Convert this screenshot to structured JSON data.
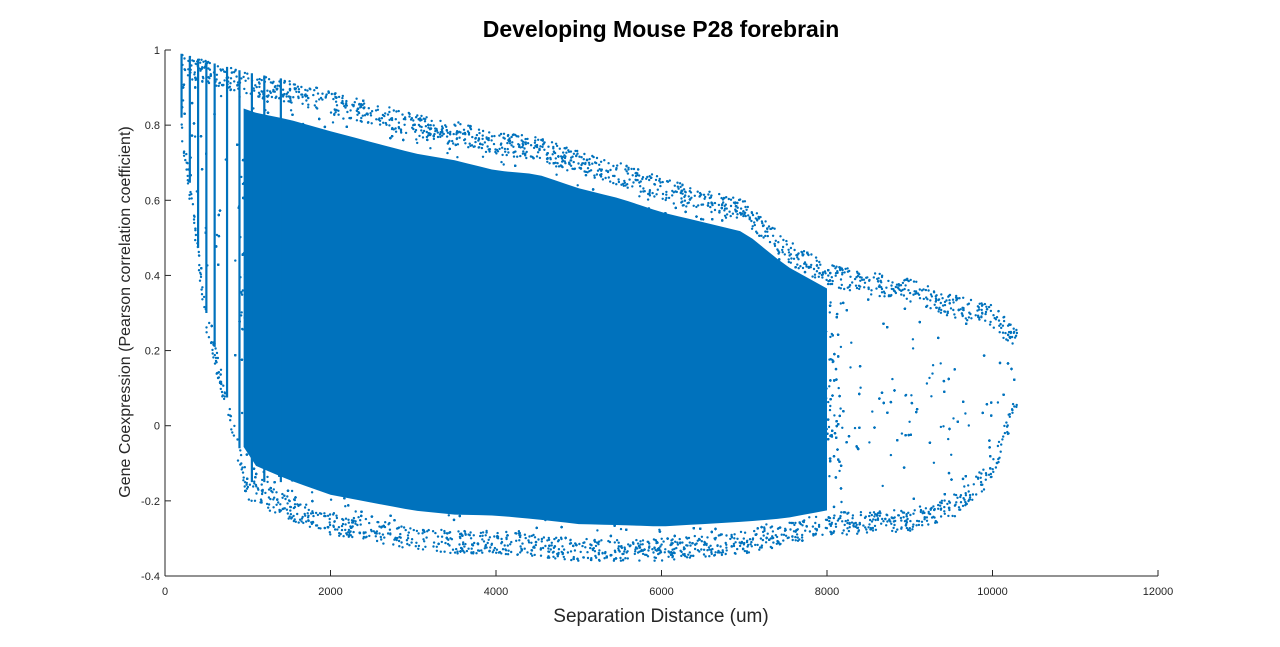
{
  "chart_data": {
    "type": "scatter",
    "title": "Developing Mouse P28 forebrain",
    "xlabel": "Separation Distance (um)",
    "ylabel": "Gene Coexpression (Pearson correlation coefficient)",
    "xlim": [
      0,
      12000
    ],
    "ylim": [
      -0.4,
      1
    ],
    "x_ticks": [
      0,
      2000,
      4000,
      6000,
      8000,
      10000,
      12000
    ],
    "x_tick_labels": [
      "0",
      "2000",
      "4000",
      "6000",
      "8000",
      "10000",
      "12000"
    ],
    "y_ticks": [
      -0.4,
      -0.2,
      0,
      0.2,
      0.4,
      0.6,
      0.8,
      1
    ],
    "y_tick_labels": [
      "-0.4",
      "-0.2",
      "0",
      "0.2",
      "0.4",
      "0.6",
      "0.8",
      "1"
    ],
    "grid": false,
    "legend": "none",
    "marker_color": "#0072BD",
    "series": [
      {
        "marker": "dot",
        "approx_points": 60000,
        "envelope": {
          "x": [
            200,
            500,
            1000,
            1500,
            2000,
            2500,
            3000,
            3500,
            4000,
            4500,
            5000,
            5500,
            6000,
            6500,
            7000,
            7500,
            8000,
            8500,
            9000,
            9500,
            10000,
            10300
          ],
          "y_upper": [
            0.99,
            0.97,
            0.94,
            0.92,
            0.89,
            0.86,
            0.83,
            0.81,
            0.78,
            0.77,
            0.73,
            0.7,
            0.66,
            0.63,
            0.6,
            0.5,
            0.43,
            0.41,
            0.39,
            0.35,
            0.32,
            0.26
          ],
          "y_lower": [
            0.77,
            0.25,
            -0.2,
            -0.25,
            -0.29,
            -0.31,
            -0.33,
            -0.34,
            -0.34,
            -0.35,
            -0.36,
            -0.36,
            -0.36,
            -0.35,
            -0.34,
            -0.32,
            -0.29,
            -0.29,
            -0.28,
            -0.25,
            -0.15,
            0.05
          ]
        }
      }
    ]
  }
}
